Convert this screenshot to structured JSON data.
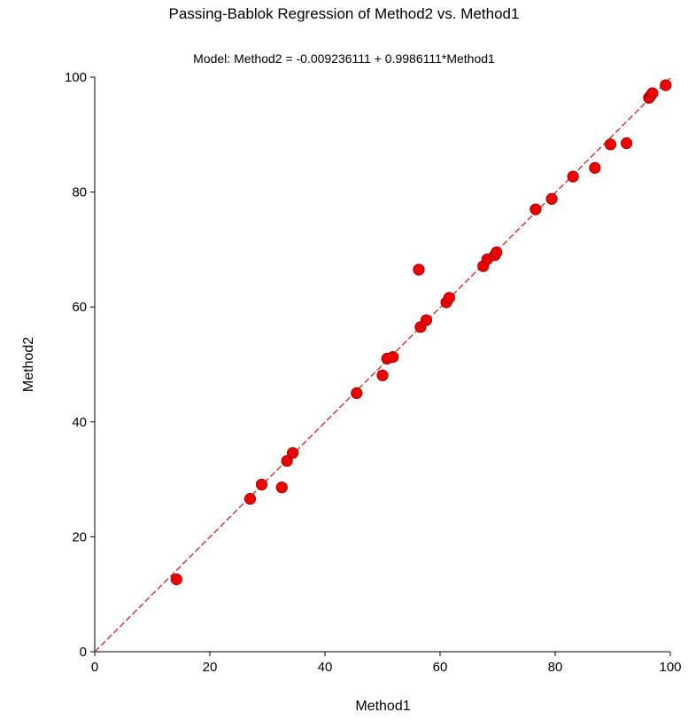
{
  "chart_data": {
    "type": "scatter",
    "title": "Passing-Bablok Regression of Method2 vs. Method1",
    "subtitle": "Model: Method2 = -0.009236111 + 0.9986111*Method1",
    "xlabel": "Method1",
    "ylabel": "Method2",
    "xlim": [
      0,
      100
    ],
    "ylim": [
      0,
      100
    ],
    "xticks": [
      "0",
      "20",
      "40",
      "60",
      "80",
      "100"
    ],
    "yticks": [
      "0",
      "20",
      "40",
      "60",
      "80",
      "100"
    ],
    "grid": false,
    "points_color": "#ee0000",
    "line_color": "#cc3333",
    "regression": {
      "intercept": -0.009236111,
      "slope": 0.9986111,
      "style": "dashed"
    },
    "points": [
      {
        "x": 14.2,
        "y": 12.6
      },
      {
        "x": 27.0,
        "y": 26.6
      },
      {
        "x": 29.0,
        "y": 29.1
      },
      {
        "x": 32.5,
        "y": 28.6
      },
      {
        "x": 33.4,
        "y": 33.2
      },
      {
        "x": 34.4,
        "y": 34.6
      },
      {
        "x": 45.5,
        "y": 45.0
      },
      {
        "x": 50.0,
        "y": 48.1
      },
      {
        "x": 50.8,
        "y": 51.0
      },
      {
        "x": 51.8,
        "y": 51.3
      },
      {
        "x": 56.3,
        "y": 66.5
      },
      {
        "x": 56.6,
        "y": 56.5
      },
      {
        "x": 57.6,
        "y": 57.7
      },
      {
        "x": 61.1,
        "y": 60.8
      },
      {
        "x": 61.6,
        "y": 61.6
      },
      {
        "x": 67.5,
        "y": 67.1
      },
      {
        "x": 68.2,
        "y": 68.3
      },
      {
        "x": 69.5,
        "y": 69.0
      },
      {
        "x": 69.8,
        "y": 69.5
      },
      {
        "x": 76.6,
        "y": 77.0
      },
      {
        "x": 79.4,
        "y": 78.8
      },
      {
        "x": 83.1,
        "y": 82.7
      },
      {
        "x": 86.9,
        "y": 84.2
      },
      {
        "x": 89.6,
        "y": 88.3
      },
      {
        "x": 92.4,
        "y": 88.5
      },
      {
        "x": 96.3,
        "y": 96.4
      },
      {
        "x": 96.6,
        "y": 96.8
      },
      {
        "x": 96.9,
        "y": 97.2
      },
      {
        "x": 99.2,
        "y": 98.6
      }
    ]
  }
}
